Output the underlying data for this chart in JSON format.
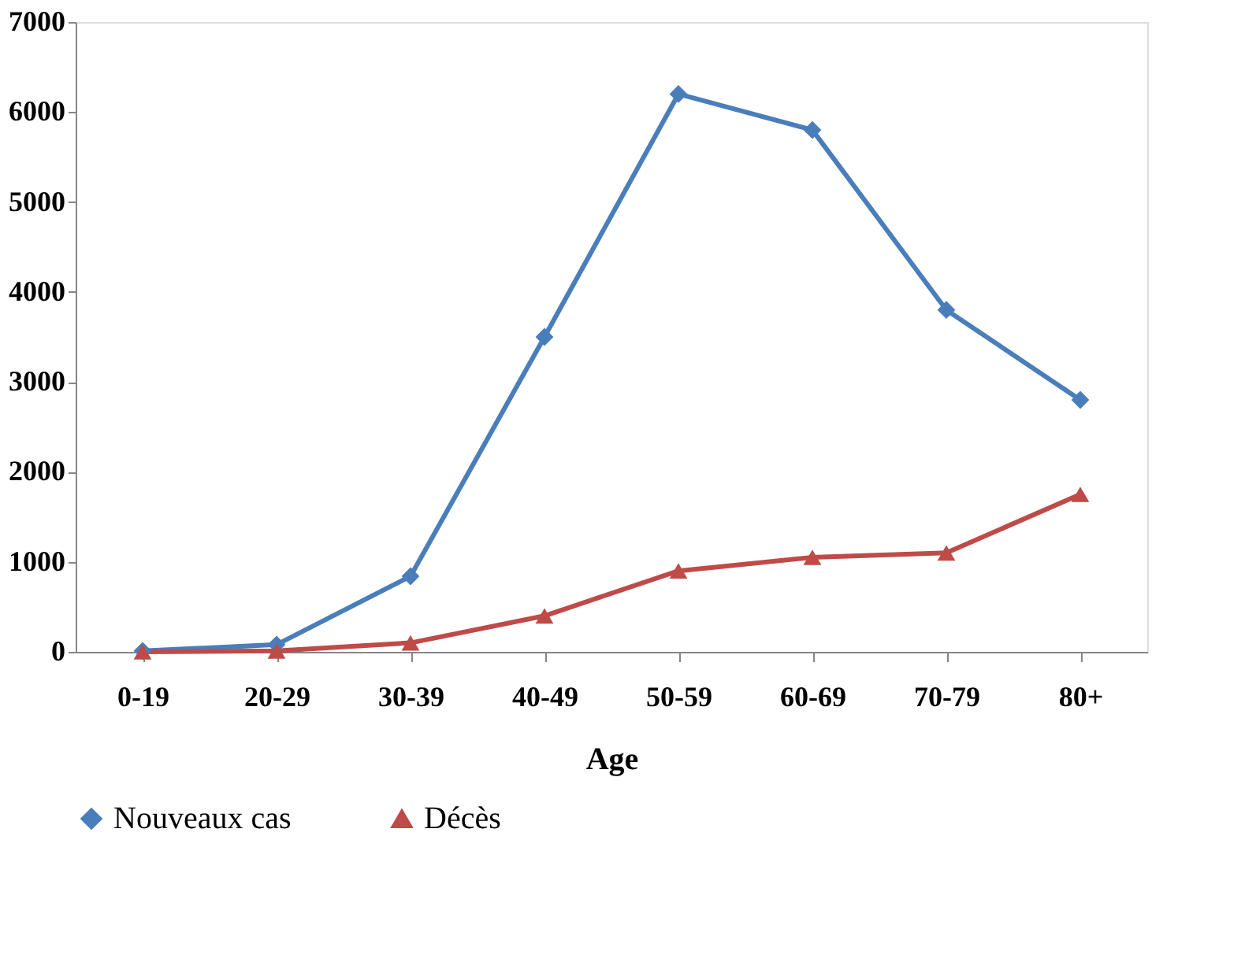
{
  "chart_data": {
    "type": "line",
    "xlabel": "Age",
    "categories": [
      "0-19",
      "20-29",
      "30-39",
      "40-49",
      "50-59",
      "60-69",
      "70-79",
      "80+"
    ],
    "series": [
      {
        "name": "Nouveaux cas",
        "color": "#4a7ebb",
        "marker": "diamond",
        "values": [
          10,
          80,
          840,
          3500,
          6200,
          5800,
          3800,
          2800
        ]
      },
      {
        "name": "Décès",
        "color": "#be4b48",
        "marker": "triangle",
        "values": [
          0,
          10,
          100,
          400,
          900,
          1050,
          1100,
          1750
        ]
      }
    ],
    "ylim": [
      0,
      7000
    ],
    "yticks": [
      0,
      1000,
      2000,
      3000,
      4000,
      5000,
      6000,
      7000
    ],
    "grid": false,
    "legend": "bottom",
    "line_style": "solid"
  }
}
